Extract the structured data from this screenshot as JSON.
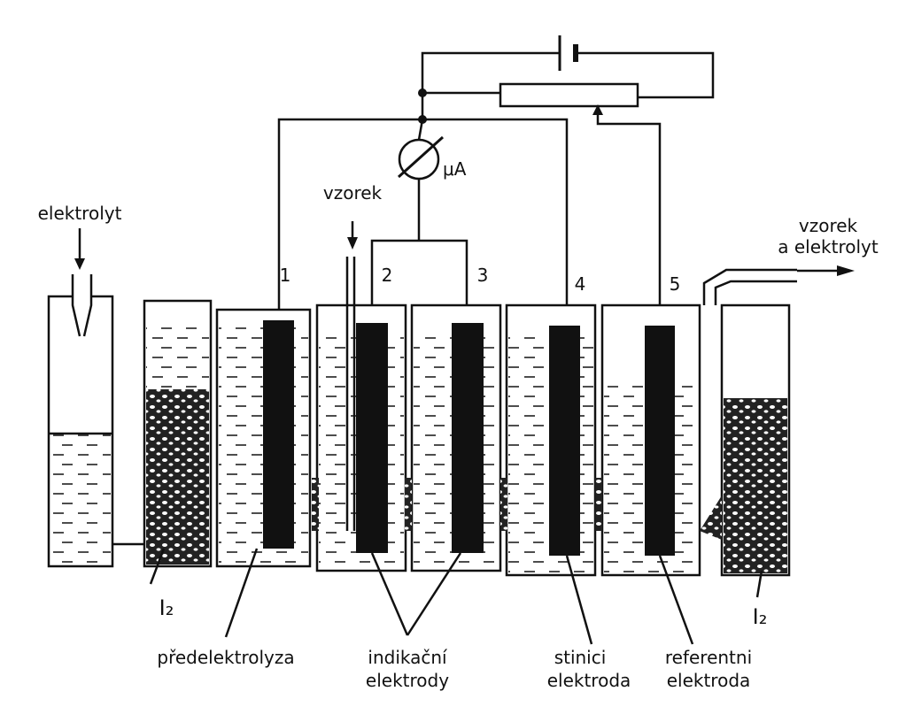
{
  "inputs": {
    "electrolyte": "elektrolyt",
    "sample": "vzorek"
  },
  "ammeter": "μA",
  "outlet": [
    "vzorek",
    "a elektrolyt"
  ],
  "electrodes": [
    "1",
    "2",
    "3",
    "4",
    "5"
  ],
  "iodine": [
    "I₂",
    "I₂"
  ],
  "captions": {
    "pre_electrolysis": "předelektrolyza",
    "indicator": [
      "indikační",
      "elektrody"
    ],
    "shielding": [
      "stinici",
      "elektroda"
    ],
    "reference": [
      "referentni",
      "elektroda"
    ]
  }
}
